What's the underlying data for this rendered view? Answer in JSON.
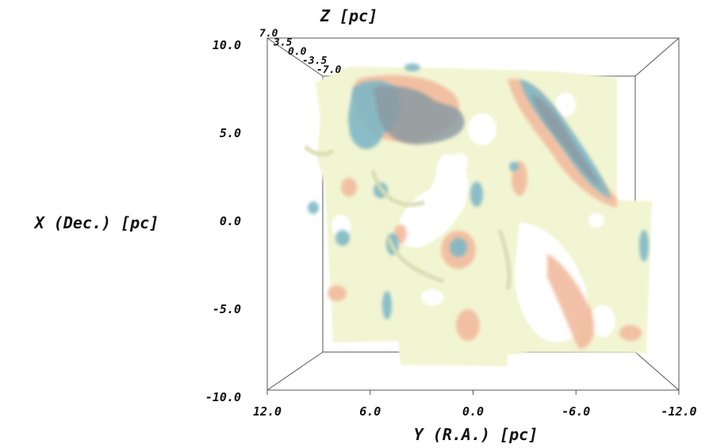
{
  "chart_data": {
    "type": "3d-isosurface",
    "x_axis": {
      "label": "Y (R.A.) [pc]",
      "range": [
        12.0,
        -12.0
      ],
      "ticks": [
        "12.0",
        "6.0",
        "0.0",
        "-6.0",
        "-12.0"
      ]
    },
    "y_axis": {
      "label": "X (Dec.) [pc]",
      "range": [
        -10.0,
        10.0
      ],
      "ticks": [
        "10.0",
        "5.0",
        "0.0",
        "-5.0",
        "-10.0"
      ]
    },
    "z_axis": {
      "label": "Z [pc]",
      "ticks": [
        "7.0",
        "3.5",
        "0.0",
        "-3.5",
        "-7.0"
      ]
    },
    "surface_colors": {
      "low": "#f2f5d2",
      "mid": "#f1b79a",
      "high": "#7fb8c6",
      "overlap": "#8c9aa2"
    },
    "grid": false
  }
}
